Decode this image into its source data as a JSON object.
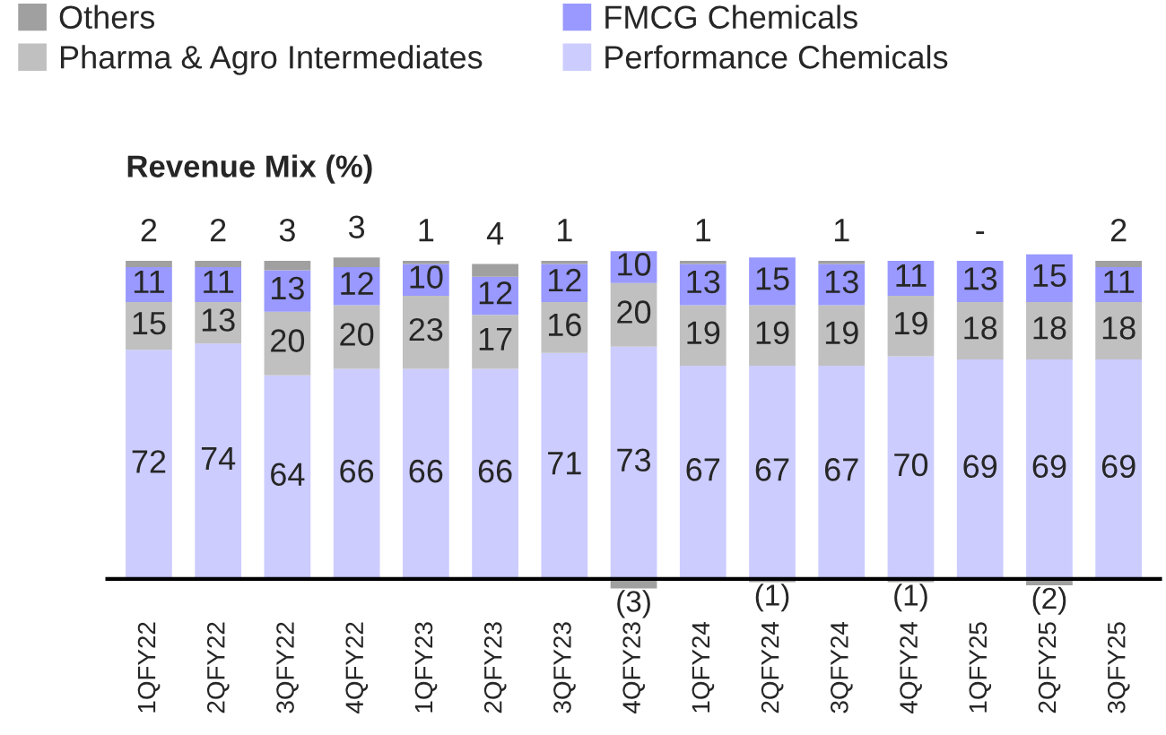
{
  "chart_data": {
    "type": "bar",
    "stacked": true,
    "title": "Revenue Mix (%)",
    "legend": "top",
    "categories": [
      "1QFY22",
      "2QFY22",
      "3QFY22",
      "4QFY22",
      "1QFY23",
      "2QFY23",
      "3QFY23",
      "4QFY23",
      "1QFY24",
      "2QFY24",
      "3QFY24",
      "4QFY24",
      "1QFY25",
      "2QFY25",
      "3QFY25"
    ],
    "series": [
      {
        "name": "Performance Chemicals",
        "color": "#ccccff",
        "values": [
          72,
          74,
          64,
          66,
          66,
          66,
          71,
          73,
          67,
          67,
          67,
          70,
          69,
          69,
          69
        ],
        "value_labels": [
          "72",
          "74",
          "64",
          "66",
          "66",
          "66",
          "71",
          "73",
          "67",
          "67",
          "67",
          "70",
          "69",
          "69",
          "69"
        ]
      },
      {
        "name": "Pharma & Agro Intermediates",
        "color": "#c0c0c0",
        "values": [
          15,
          13,
          20,
          20,
          23,
          17,
          16,
          20,
          19,
          19,
          19,
          19,
          18,
          18,
          18
        ],
        "value_labels": [
          "15",
          "13",
          "20",
          "20",
          "23",
          "17",
          "16",
          "20",
          "19",
          "19",
          "19",
          "19",
          "18",
          "18",
          "18"
        ]
      },
      {
        "name": "FMCG Chemicals",
        "color": "#9999ff",
        "values": [
          11,
          11,
          13,
          12,
          10,
          12,
          12,
          10,
          13,
          15,
          13,
          11,
          13,
          15,
          11
        ],
        "value_labels": [
          "11",
          "11",
          "13",
          "12",
          "10",
          "12",
          "12",
          "10",
          "13",
          "15",
          "13",
          "11",
          "13",
          "15",
          "11"
        ]
      },
      {
        "name": "Others",
        "color": "#a0a0a0",
        "values": [
          2,
          2,
          3,
          3,
          1,
          4,
          1,
          -3,
          1,
          -1,
          1,
          -1,
          0,
          -2,
          2
        ],
        "value_labels": [
          "2",
          "2",
          "3",
          "3",
          "1",
          "4",
          "1",
          "(3)",
          "1",
          "(1)",
          "1",
          "(1)",
          "-",
          "(2)",
          "2"
        ]
      }
    ]
  }
}
